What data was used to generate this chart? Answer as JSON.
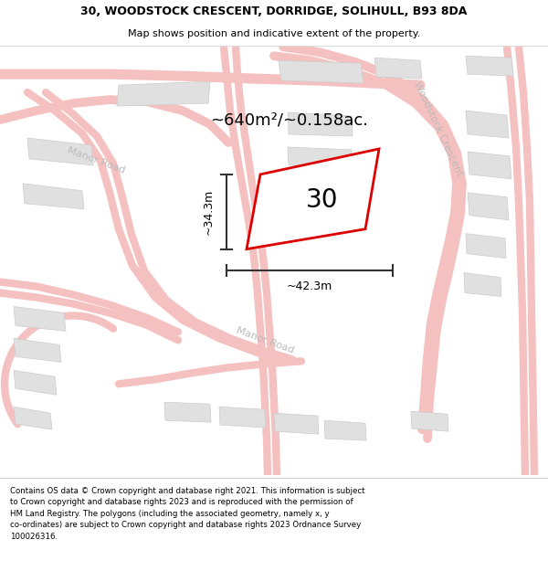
{
  "title_line1": "30, WOODSTOCK CRESCENT, DORRIDGE, SOLIHULL, B93 8DA",
  "title_line2": "Map shows position and indicative extent of the property.",
  "area_text": "~640m²/~0.158ac.",
  "property_number": "30",
  "dim_width": "~42.3m",
  "dim_height": "~34.3m",
  "road_label1": "Woodstock Crescent",
  "road_label2": "Manor Road",
  "road_label3": "Manor Road",
  "footer_text": "Contains OS data © Crown copyright and database right 2021. This information is subject to Crown copyright and database rights 2023 and is reproduced with the permission of HM Land Registry. The polygons (including the associated geometry, namely x, y co-ordinates) are subject to Crown copyright and database rights 2023 Ordnance Survey 100026316.",
  "bg_color": "#ffffff",
  "map_bg": "#ffffff",
  "property_fill": "#ffffff",
  "property_edge": "#dd0000",
  "road_color": "#f5c0c0",
  "road_fill": "#f9f0f0",
  "building_fill": "#e0e0e0",
  "building_edge": "#cccccc",
  "text_color": "#000000",
  "road_text_color": "#bbbbbb",
  "title_bg": "#ffffff",
  "footer_bg": "#ffffff",
  "dim_line_color": "#333333"
}
